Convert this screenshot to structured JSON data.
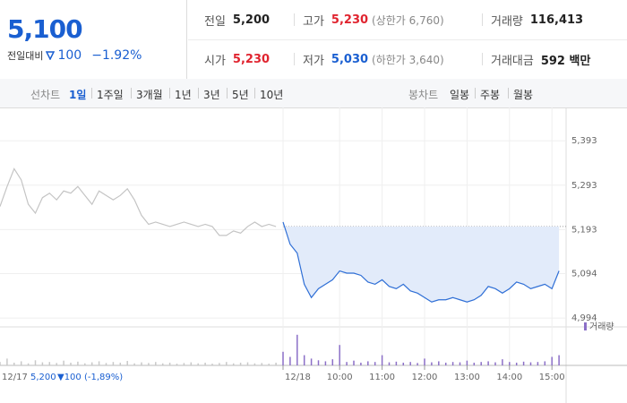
{
  "quote": {
    "price": "5,100",
    "change_label": "전일대비",
    "change": "100",
    "change_pct": "−1.92%"
  },
  "stats": [
    [
      {
        "label": "전일",
        "value": "5,200",
        "color": "#222222"
      },
      {
        "label": "고가",
        "value": "5,230",
        "color": "#e0242f",
        "extra": "(상한가 6,760)"
      },
      {
        "label": "거래량",
        "value": "116,413",
        "color": "#222222"
      }
    ],
    [
      {
        "label": "시가",
        "value": "5,230",
        "color": "#e0242f"
      },
      {
        "label": "저가",
        "value": "5,030",
        "color": "#1a5fd1",
        "extra": "(하한가 3,640)"
      },
      {
        "label": "거래대금",
        "value": "592 백만",
        "color": "#222222"
      }
    ]
  ],
  "tabs": {
    "line_label": "선차트",
    "ranges": [
      "1일",
      "1주일",
      "3개월",
      "1년",
      "3년",
      "5년",
      "10년"
    ],
    "active": 0,
    "candle_label": "봉차트",
    "candles": [
      "일봉",
      "주봉",
      "월봉"
    ]
  },
  "footer": {
    "date": "12/17",
    "close": "5,200",
    "change": "▼100 (-1,89%)"
  },
  "chart_data": {
    "type": "line",
    "categories": [
      null,
      null,
      null,
      null,
      null,
      null,
      null,
      null,
      null,
      null,
      null,
      null,
      null,
      null,
      null,
      null,
      null,
      null,
      null,
      null,
      null,
      null,
      null,
      null,
      null,
      null,
      null,
      null,
      null,
      null,
      null,
      null,
      null,
      null,
      null,
      null,
      null,
      null,
      null,
      null,
      "12/18",
      null,
      null,
      null,
      null,
      null,
      null,
      null,
      "10:00",
      null,
      null,
      null,
      null,
      null,
      "11:00",
      null,
      null,
      null,
      null,
      null,
      "12:00",
      null,
      null,
      null,
      null,
      null,
      "13:00",
      null,
      null,
      null,
      null,
      null,
      "14:00",
      null,
      null,
      null,
      null,
      null,
      "15:00",
      null
    ],
    "series": [
      {
        "color": "#c4c4c4",
        "values": [
          5245,
          5290,
          5330,
          5305,
          5250,
          5230,
          5265,
          5275,
          5260,
          5280,
          5275,
          5290,
          5270,
          5250,
          5280,
          5270,
          5260,
          5270,
          5285,
          5260,
          5225,
          5205,
          5210,
          5205,
          5200,
          5205,
          5210,
          5205,
          5200,
          5205,
          5200,
          5180,
          5180,
          5190,
          5185,
          5200,
          5210,
          5200,
          5205,
          5200,
          null,
          null,
          null,
          null,
          null,
          null,
          null,
          null,
          null,
          null,
          null,
          null,
          null,
          null,
          null,
          null,
          null,
          null,
          null,
          null,
          null,
          null,
          null,
          null,
          null,
          null,
          null,
          null,
          null,
          null,
          null,
          null,
          null,
          null,
          null,
          null,
          null,
          null,
          null,
          null
        ]
      },
      {
        "color": "#2f6fd6",
        "fill": "#e2ebfa",
        "values": [
          null,
          null,
          null,
          null,
          null,
          null,
          null,
          null,
          null,
          null,
          null,
          null,
          null,
          null,
          null,
          null,
          null,
          null,
          null,
          null,
          null,
          null,
          null,
          null,
          null,
          null,
          null,
          null,
          null,
          null,
          null,
          null,
          null,
          null,
          null,
          null,
          null,
          null,
          null,
          null,
          5210,
          5160,
          5140,
          5070,
          5040,
          5060,
          5070,
          5080,
          5100,
          5095,
          5095,
          5090,
          5075,
          5070,
          5080,
          5065,
          5060,
          5070,
          5055,
          5050,
          5040,
          5030,
          5035,
          5035,
          5040,
          5035,
          5030,
          5035,
          5045,
          5065,
          5060,
          5050,
          5060,
          5075,
          5070,
          5060,
          5065,
          5070,
          5060,
          5100
        ]
      },
      {
        "name": "거래량",
        "axis": "y2",
        "color": "#8b6fc7",
        "past_color": "#c8c8c8",
        "values": [
          10,
          20,
          8,
          12,
          6,
          15,
          9,
          10,
          7,
          14,
          8,
          11,
          6,
          9,
          12,
          7,
          10,
          8,
          13,
          6,
          9,
          7,
          10,
          6,
          8,
          5,
          7,
          9,
          6,
          8,
          5,
          7,
          10,
          6,
          8,
          9,
          6,
          7,
          5,
          8,
          40,
          25,
          90,
          30,
          20,
          15,
          12,
          18,
          60,
          10,
          14,
          8,
          12,
          10,
          30,
          9,
          11,
          8,
          10,
          7,
          20,
          9,
          12,
          8,
          10,
          9,
          14,
          8,
          10,
          12,
          9,
          18,
          10,
          8,
          11,
          9,
          10,
          12,
          25,
          30
        ]
      }
    ],
    "ylim": [
      4974,
      5464
    ],
    "yticks": [
      {
        "value": 5393,
        "label": "5,393"
      },
      {
        "value": 5293,
        "label": "5,293"
      },
      {
        "value": 5193,
        "label": "5,193"
      },
      {
        "value": 5094,
        "label": "5,094"
      },
      {
        "value": 4994,
        "label": "4,994"
      }
    ],
    "y2lim": [
      0,
      100
    ],
    "reference_line": 5200,
    "grid": true
  }
}
